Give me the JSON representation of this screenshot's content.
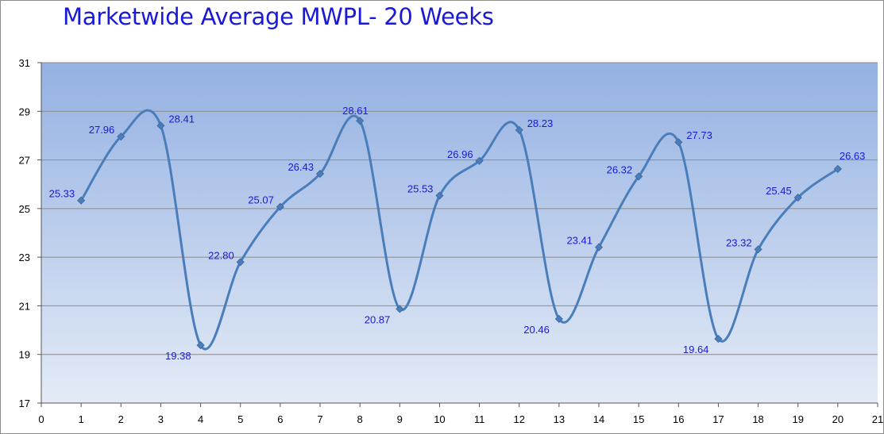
{
  "chart_data": {
    "type": "line",
    "title": "Marketwide Average MWPL- 20 Weeks",
    "xlabel": "",
    "ylabel": "",
    "xlim": [
      0,
      21
    ],
    "ylim": [
      17,
      31
    ],
    "x_ticks": [
      0,
      1,
      2,
      3,
      4,
      5,
      6,
      7,
      8,
      9,
      10,
      11,
      12,
      13,
      14,
      15,
      16,
      17,
      18,
      19,
      20,
      21
    ],
    "y_ticks": [
      17,
      19,
      21,
      23,
      25,
      27,
      29,
      31
    ],
    "grid": "horizontal",
    "smooth": true,
    "series": [
      {
        "color": "#4a7ebb",
        "x": [
          1,
          2,
          3,
          4,
          5,
          6,
          7,
          8,
          9,
          10,
          11,
          12,
          13,
          14,
          15,
          16,
          17,
          18,
          19,
          20
        ],
        "y": [
          25.33,
          27.96,
          28.41,
          19.38,
          22.8,
          25.07,
          26.43,
          28.61,
          20.87,
          25.53,
          26.96,
          28.23,
          20.46,
          23.41,
          26.32,
          27.73,
          19.64,
          23.32,
          25.45,
          26.63
        ],
        "labels": [
          "25.33",
          "27.96",
          "28.41",
          "19.38",
          "22.80",
          "25.07",
          "26.43",
          "28.61",
          "20.87",
          "25.53",
          "26.96",
          "28.23",
          "20.46",
          "23.41",
          "26.32",
          "27.73",
          "19.64",
          "23.32",
          "25.45",
          "26.63"
        ]
      }
    ]
  }
}
